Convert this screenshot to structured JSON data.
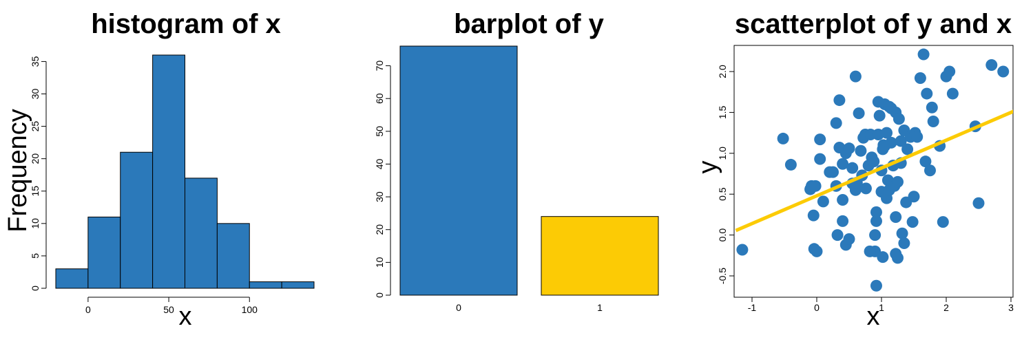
{
  "colors": {
    "blue": "#2b79ba",
    "yellow": "#fccb05",
    "bar_edge": "#000000"
  },
  "chart_data": [
    {
      "type": "bar",
      "subtype": "histogram",
      "title": "histogram of x",
      "xlabel": "x",
      "ylabel": "Frequency",
      "bins": [
        [
          -20,
          0
        ],
        [
          0,
          20
        ],
        [
          20,
          40
        ],
        [
          40,
          60
        ],
        [
          60,
          80
        ],
        [
          80,
          100
        ],
        [
          100,
          120
        ],
        [
          120,
          140
        ]
      ],
      "values": [
        3,
        11,
        21,
        36,
        17,
        10,
        1,
        1
      ],
      "xticks": [
        0,
        50,
        100
      ],
      "yticks": [
        0,
        5,
        10,
        15,
        20,
        25,
        30,
        35
      ],
      "xlim": [
        -20,
        140
      ],
      "ylim": [
        0,
        36
      ],
      "grid": false,
      "color": "#2b79ba"
    },
    {
      "type": "bar",
      "title": "barplot of y",
      "xlabel": "",
      "ylabel": "",
      "categories": [
        "0",
        "1"
      ],
      "values": [
        76,
        24
      ],
      "yticks": [
        0,
        10,
        20,
        30,
        40,
        50,
        60,
        70
      ],
      "ylim": [
        0,
        76
      ],
      "grid": false,
      "colors": [
        "#2b79ba",
        "#fccb05"
      ]
    },
    {
      "type": "scatter",
      "title": "scatterplot of y and x",
      "xlabel": "x",
      "ylabel": "y",
      "xticks": [
        -1,
        0,
        1,
        2,
        3
      ],
      "yticks": [
        -0.5,
        0.0,
        0.5,
        1.0,
        1.5,
        2.0
      ],
      "ytick_labels": [
        "-0.5",
        "0.0",
        "0.5",
        "1.0",
        "1.5",
        "2.0"
      ],
      "xlim": [
        -1.25,
        3.05
      ],
      "ylim": [
        -0.78,
        2.33
      ],
      "grid": false,
      "point_color": "#2b79ba",
      "line_color": "#fccb05",
      "fit_line": {
        "intercept": 0.48,
        "slope": 0.34
      },
      "points": [
        [
          -1.15,
          -0.18
        ],
        [
          -0.52,
          1.18
        ],
        [
          -0.4,
          0.86
        ],
        [
          -0.08,
          0.6
        ],
        [
          -0.1,
          0.56
        ],
        [
          -0.05,
          0.24
        ],
        [
          -0.02,
          0.6
        ],
        [
          0.05,
          0.93
        ],
        [
          0.05,
          1.17
        ],
        [
          0.1,
          0.41
        ],
        [
          -0.04,
          -0.17
        ],
        [
          0.0,
          -0.2
        ],
        [
          0.25,
          0.77
        ],
        [
          0.3,
          0.6
        ],
        [
          0.3,
          1.37
        ],
        [
          0.35,
          1.65
        ],
        [
          0.35,
          1.07
        ],
        [
          0.32,
          0.0
        ],
        [
          0.4,
          0.87
        ],
        [
          0.4,
          0.43
        ],
        [
          0.45,
          1.0
        ],
        [
          0.5,
          1.06
        ],
        [
          0.55,
          0.82
        ],
        [
          0.55,
          0.63
        ],
        [
          0.6,
          0.55
        ],
        [
          0.62,
          0.64
        ],
        [
          0.65,
          1.49
        ],
        [
          0.68,
          1.03
        ],
        [
          0.72,
          1.19
        ],
        [
          0.75,
          1.23
        ],
        [
          0.6,
          1.94
        ],
        [
          0.4,
          0.17
        ],
        [
          0.45,
          -0.12
        ],
        [
          0.5,
          -0.05
        ],
        [
          0.7,
          0.73
        ],
        [
          0.8,
          0.85
        ],
        [
          0.83,
          1.23
        ],
        [
          0.85,
          0.95
        ],
        [
          0.88,
          0.9
        ],
        [
          0.9,
          0.0
        ],
        [
          0.9,
          -0.2
        ],
        [
          0.92,
          0.28
        ],
        [
          0.92,
          0.17
        ],
        [
          0.95,
          1.63
        ],
        [
          0.97,
          1.46
        ],
        [
          1.0,
          0.53
        ],
        [
          1.0,
          0.79
        ],
        [
          1.02,
          1.05
        ],
        [
          1.03,
          1.1
        ],
        [
          1.05,
          1.6
        ],
        [
          1.05,
          1.09
        ],
        [
          1.08,
          0.45
        ],
        [
          1.1,
          0.67
        ],
        [
          1.12,
          0.55
        ],
        [
          1.15,
          1.13
        ],
        [
          1.15,
          1.55
        ],
        [
          1.18,
          0.85
        ],
        [
          1.2,
          0.6
        ],
        [
          1.22,
          1.5
        ],
        [
          1.22,
          0.22
        ],
        [
          1.25,
          0.65
        ],
        [
          1.27,
          1.42
        ],
        [
          1.3,
          1.15
        ],
        [
          1.3,
          0.88
        ],
        [
          1.32,
          0.02
        ],
        [
          1.35,
          -0.1
        ],
        [
          1.35,
          1.28
        ],
        [
          1.38,
          0.4
        ],
        [
          1.4,
          1.05
        ],
        [
          1.45,
          1.2
        ],
        [
          1.48,
          0.16
        ],
        [
          1.5,
          0.47
        ],
        [
          1.52,
          1.25
        ],
        [
          1.55,
          1.2
        ],
        [
          1.6,
          1.92
        ],
        [
          1.65,
          2.21
        ],
        [
          1.68,
          0.9
        ],
        [
          1.7,
          1.73
        ],
        [
          1.75,
          0.79
        ],
        [
          1.78,
          1.56
        ],
        [
          1.8,
          1.39
        ],
        [
          1.9,
          1.09
        ],
        [
          1.95,
          0.16
        ],
        [
          2.0,
          1.94
        ],
        [
          2.05,
          2.0
        ],
        [
          2.1,
          1.73
        ],
        [
          2.45,
          1.33
        ],
        [
          2.5,
          0.39
        ],
        [
          2.7,
          2.08
        ],
        [
          2.88,
          2.0
        ],
        [
          1.02,
          -0.27
        ],
        [
          1.25,
          -0.28
        ],
        [
          1.22,
          -0.23
        ],
        [
          0.82,
          -0.2
        ],
        [
          0.92,
          -0.62
        ],
        [
          0.76,
          0.57
        ],
        [
          0.2,
          0.77
        ],
        [
          0.95,
          1.23
        ],
        [
          1.08,
          1.25
        ],
        [
          1.12,
          1.57
        ]
      ]
    }
  ]
}
